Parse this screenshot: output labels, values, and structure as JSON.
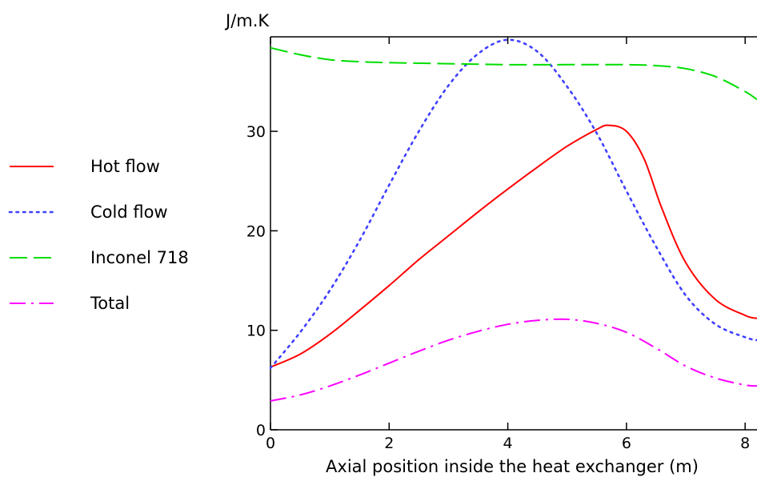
{
  "chart_data": {
    "type": "line",
    "title": "",
    "ylabel": "J/m.K",
    "xlabel": "Axial position inside the heat exchanger (m)",
    "xlim": [
      0,
      8.2
    ],
    "ylim": [
      0,
      39.5
    ],
    "x_ticks": [
      0,
      2,
      4,
      6,
      8
    ],
    "y_ticks": [
      0,
      10,
      20,
      30
    ],
    "grid": false,
    "legend_position": "left",
    "series": [
      {
        "name": "Hot flow",
        "color": "#ff0000",
        "style": "solid",
        "x": [
          0,
          0.5,
          1,
          1.5,
          2,
          2.5,
          3,
          3.5,
          4,
          4.5,
          5,
          5.5,
          5.7,
          6,
          6.3,
          6.6,
          7,
          7.5,
          8,
          8.2
        ],
        "y": [
          6.3,
          7.6,
          9.6,
          12,
          14.5,
          17.1,
          19.5,
          21.9,
          24.2,
          26.4,
          28.5,
          30.2,
          30.6,
          30,
          27.2,
          22.2,
          16.8,
          13.1,
          11.5,
          11.2
        ]
      },
      {
        "name": "Cold flow",
        "color": "#4040ff",
        "style": "dotted",
        "x": [
          0,
          0.5,
          1,
          1.5,
          2,
          2.5,
          3,
          3.5,
          4,
          4.5,
          5,
          5.5,
          6,
          6.5,
          7,
          7.5,
          8,
          8.2
        ],
        "y": [
          6.2,
          9.8,
          14,
          19,
          24.6,
          30,
          34.6,
          37.8,
          39.2,
          38,
          34.5,
          29.8,
          24,
          18.4,
          13.5,
          10.6,
          9.3,
          9
        ]
      },
      {
        "name": "Inconel 718",
        "color": "#00dd00",
        "style": "dashed",
        "x": [
          0,
          0.5,
          1,
          1.5,
          2,
          3,
          4,
          5,
          6,
          6.5,
          7,
          7.5,
          8,
          8.2
        ],
        "y": [
          38.4,
          37.7,
          37.2,
          37,
          36.9,
          36.8,
          36.7,
          36.7,
          36.7,
          36.6,
          36.3,
          35.5,
          34,
          33.2
        ]
      },
      {
        "name": "Total",
        "color": "#ff00ff",
        "style": "dashdot",
        "x": [
          0,
          0.5,
          1,
          1.5,
          2,
          2.5,
          3,
          3.5,
          4,
          4.5,
          5,
          5.5,
          6,
          6.5,
          7,
          7.5,
          8,
          8.2
        ],
        "y": [
          2.9,
          3.5,
          4.4,
          5.5,
          6.7,
          7.9,
          9,
          9.9,
          10.6,
          11,
          11.1,
          10.7,
          9.8,
          8.2,
          6.4,
          5.2,
          4.5,
          4.4
        ]
      }
    ]
  }
}
